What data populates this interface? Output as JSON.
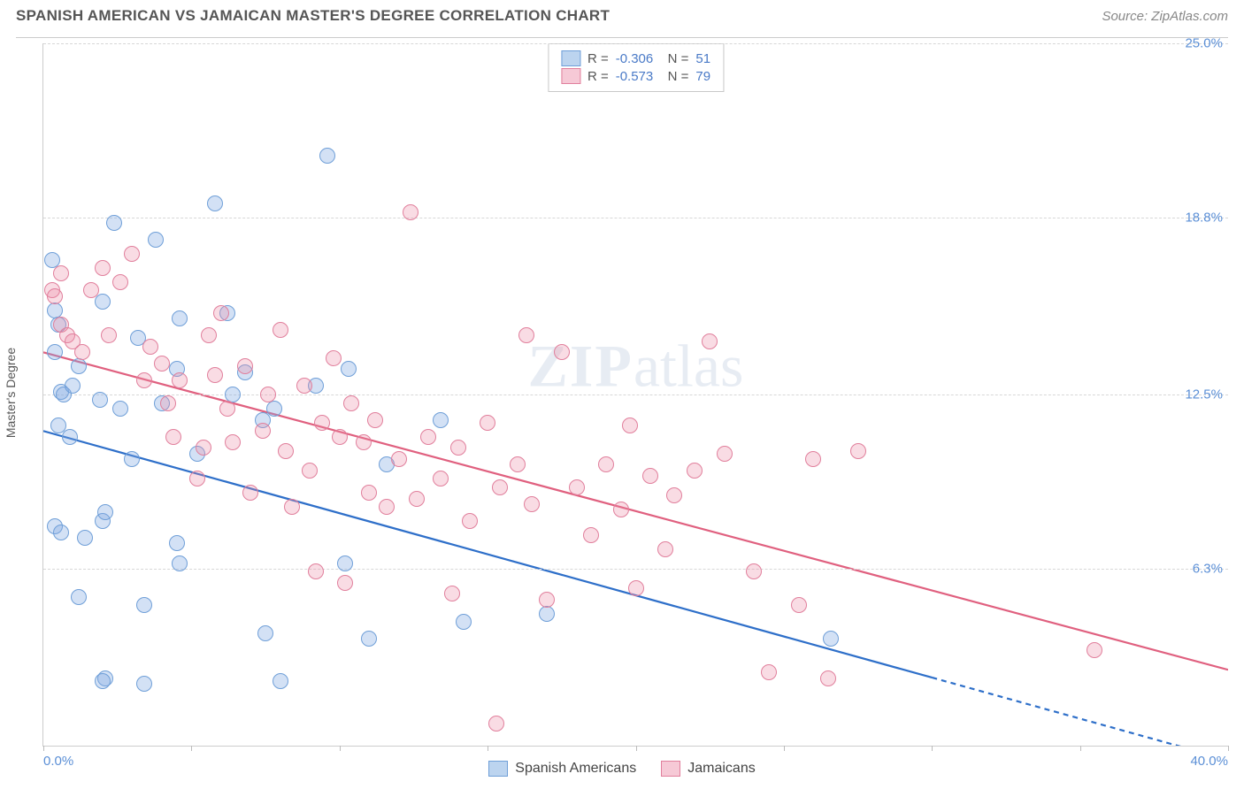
{
  "header": {
    "title": "SPANISH AMERICAN VS JAMAICAN MASTER'S DEGREE CORRELATION CHART",
    "source": "Source: ZipAtlas.com"
  },
  "chart": {
    "type": "scatter",
    "ylabel": "Master's Degree",
    "xlim": [
      0,
      40
    ],
    "ylim": [
      0,
      25
    ],
    "ytick_values": [
      6.3,
      12.5,
      18.8,
      25.0
    ],
    "ytick_labels": [
      "6.3%",
      "12.5%",
      "18.8%",
      "25.0%"
    ],
    "xtick_values": [
      0,
      5,
      10,
      15,
      20,
      25,
      30,
      35,
      40
    ],
    "xtick_labels_shown": {
      "0": "0.0%",
      "40": "40.0%"
    },
    "marker_radius": 9,
    "marker_border_width": 1.5,
    "grid_color": "#d7d7d7",
    "background_color": "#ffffff",
    "watermark": "ZIPatlas",
    "series": [
      {
        "name": "Spanish Americans",
        "fill_color": "rgba(130,170,225,0.35)",
        "stroke_color": "#6f9fd8",
        "swatch_fill": "#bcd4ef",
        "swatch_border": "#6f9fd8",
        "r_value": "-0.306",
        "n_value": "51",
        "trend": {
          "x1": 0,
          "y1": 11.2,
          "x2": 40,
          "y2": -0.5,
          "solid_until_x": 30,
          "color": "#2e6fc9",
          "width": 2.2
        },
        "points": [
          [
            0.3,
            17.3
          ],
          [
            0.4,
            15.5
          ],
          [
            0.5,
            15.0
          ],
          [
            0.4,
            14.0
          ],
          [
            0.6,
            12.6
          ],
          [
            0.7,
            12.5
          ],
          [
            0.5,
            11.4
          ],
          [
            0.9,
            11.0
          ],
          [
            0.4,
            7.8
          ],
          [
            0.6,
            7.6
          ],
          [
            1.4,
            7.4
          ],
          [
            2.0,
            8.0
          ],
          [
            2.1,
            8.3
          ],
          [
            1.2,
            5.3
          ],
          [
            1.9,
            12.3
          ],
          [
            1.0,
            12.8
          ],
          [
            1.2,
            13.5
          ],
          [
            2.6,
            12.0
          ],
          [
            2.0,
            15.8
          ],
          [
            3.2,
            14.5
          ],
          [
            2.4,
            18.6
          ],
          [
            3.8,
            18.0
          ],
          [
            4.6,
            15.2
          ],
          [
            4.5,
            13.4
          ],
          [
            4.0,
            12.2
          ],
          [
            3.0,
            10.2
          ],
          [
            3.4,
            2.2
          ],
          [
            2.1,
            2.4
          ],
          [
            2.0,
            2.3
          ],
          [
            3.4,
            5.0
          ],
          [
            4.6,
            6.5
          ],
          [
            4.5,
            7.2
          ],
          [
            5.2,
            10.4
          ],
          [
            5.8,
            19.3
          ],
          [
            6.2,
            15.4
          ],
          [
            6.8,
            13.3
          ],
          [
            7.4,
            11.6
          ],
          [
            7.8,
            12.0
          ],
          [
            7.5,
            4.0
          ],
          [
            8.0,
            2.3
          ],
          [
            9.2,
            12.8
          ],
          [
            9.6,
            21.0
          ],
          [
            10.3,
            13.4
          ],
          [
            10.2,
            6.5
          ],
          [
            11.0,
            3.8
          ],
          [
            11.6,
            10.0
          ],
          [
            13.4,
            11.6
          ],
          [
            14.2,
            4.4
          ],
          [
            17.0,
            4.7
          ],
          [
            26.6,
            3.8
          ],
          [
            6.4,
            12.5
          ]
        ]
      },
      {
        "name": "Jamaicans",
        "fill_color": "rgba(235,140,165,0.30)",
        "stroke_color": "#e17f9c",
        "swatch_fill": "#f6c9d6",
        "swatch_border": "#e17f9c",
        "r_value": "-0.573",
        "n_value": "79",
        "trend": {
          "x1": 0,
          "y1": 14.0,
          "x2": 40,
          "y2": 2.7,
          "solid_until_x": 40,
          "color": "#e0607f",
          "width": 2.2
        },
        "points": [
          [
            0.3,
            16.2
          ],
          [
            0.4,
            16.0
          ],
          [
            0.6,
            15.0
          ],
          [
            0.8,
            14.6
          ],
          [
            0.6,
            16.8
          ],
          [
            1.6,
            16.2
          ],
          [
            1.0,
            14.4
          ],
          [
            1.3,
            14.0
          ],
          [
            2.0,
            17.0
          ],
          [
            2.2,
            14.6
          ],
          [
            2.6,
            16.5
          ],
          [
            3.0,
            17.5
          ],
          [
            3.4,
            13.0
          ],
          [
            3.6,
            14.2
          ],
          [
            4.0,
            13.6
          ],
          [
            4.2,
            12.2
          ],
          [
            4.4,
            11.0
          ],
          [
            4.6,
            13.0
          ],
          [
            5.2,
            9.5
          ],
          [
            5.4,
            10.6
          ],
          [
            5.6,
            14.6
          ],
          [
            5.8,
            13.2
          ],
          [
            6.0,
            15.4
          ],
          [
            6.2,
            12.0
          ],
          [
            6.4,
            10.8
          ],
          [
            6.8,
            13.5
          ],
          [
            7.0,
            9.0
          ],
          [
            7.4,
            11.2
          ],
          [
            7.6,
            12.5
          ],
          [
            8.0,
            14.8
          ],
          [
            8.2,
            10.5
          ],
          [
            8.4,
            8.5
          ],
          [
            8.8,
            12.8
          ],
          [
            9.0,
            9.8
          ],
          [
            9.2,
            6.2
          ],
          [
            9.4,
            11.5
          ],
          [
            9.8,
            13.8
          ],
          [
            10.0,
            11.0
          ],
          [
            10.2,
            5.8
          ],
          [
            10.4,
            12.2
          ],
          [
            10.8,
            10.8
          ],
          [
            11.0,
            9.0
          ],
          [
            11.2,
            11.6
          ],
          [
            11.6,
            8.5
          ],
          [
            12.0,
            10.2
          ],
          [
            12.4,
            19.0
          ],
          [
            12.6,
            8.8
          ],
          [
            13.0,
            11.0
          ],
          [
            13.4,
            9.5
          ],
          [
            13.8,
            5.4
          ],
          [
            14.0,
            10.6
          ],
          [
            14.4,
            8.0
          ],
          [
            15.0,
            11.5
          ],
          [
            15.3,
            0.8
          ],
          [
            15.4,
            9.2
          ],
          [
            16.0,
            10.0
          ],
          [
            16.3,
            14.6
          ],
          [
            16.5,
            8.6
          ],
          [
            17.0,
            5.2
          ],
          [
            17.5,
            14.0
          ],
          [
            18.0,
            9.2
          ],
          [
            18.5,
            7.5
          ],
          [
            19.0,
            10.0
          ],
          [
            19.5,
            8.4
          ],
          [
            20.0,
            5.6
          ],
          [
            20.5,
            9.6
          ],
          [
            21.0,
            7.0
          ],
          [
            22.0,
            9.8
          ],
          [
            22.5,
            14.4
          ],
          [
            23.0,
            10.4
          ],
          [
            24.0,
            6.2
          ],
          [
            24.5,
            2.6
          ],
          [
            25.5,
            5.0
          ],
          [
            26.0,
            10.2
          ],
          [
            26.5,
            2.4
          ],
          [
            27.5,
            10.5
          ],
          [
            19.8,
            11.4
          ],
          [
            35.5,
            3.4
          ],
          [
            21.3,
            8.9
          ]
        ]
      }
    ]
  },
  "legend": {
    "items": [
      {
        "label": "Spanish Americans",
        "fill": "#bcd4ef",
        "border": "#6f9fd8"
      },
      {
        "label": "Jamaicans",
        "fill": "#f6c9d6",
        "border": "#e17f9c"
      }
    ]
  }
}
